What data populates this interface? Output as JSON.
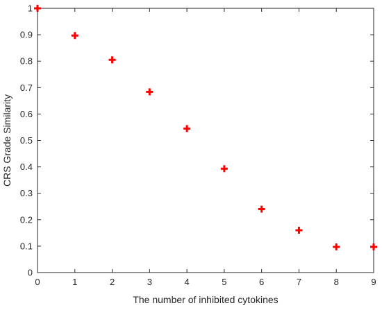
{
  "chart_data": {
    "type": "scatter",
    "title": "",
    "xlabel": "The number of inhibited cytokines",
    "ylabel": "CRS Grade Similarity",
    "xlim": [
      0,
      9
    ],
    "ylim": [
      0,
      1
    ],
    "xticks": [
      "0",
      "1",
      "2",
      "3",
      "4",
      "5",
      "6",
      "7",
      "8",
      "9"
    ],
    "yticks": [
      "0",
      "0.1",
      "0.2",
      "0.3",
      "0.4",
      "0.5",
      "0.6",
      "0.7",
      "0.8",
      "0.9",
      "1"
    ],
    "grid": false,
    "legend": "none",
    "marker": "plus",
    "color": "#ff0000",
    "series": [
      {
        "x": [
          0,
          1,
          2,
          3,
          4,
          5,
          6,
          7,
          8,
          9
        ],
        "y": [
          1.0,
          0.897,
          0.805,
          0.684,
          0.545,
          0.393,
          0.24,
          0.16,
          0.097,
          0.097
        ]
      }
    ]
  }
}
